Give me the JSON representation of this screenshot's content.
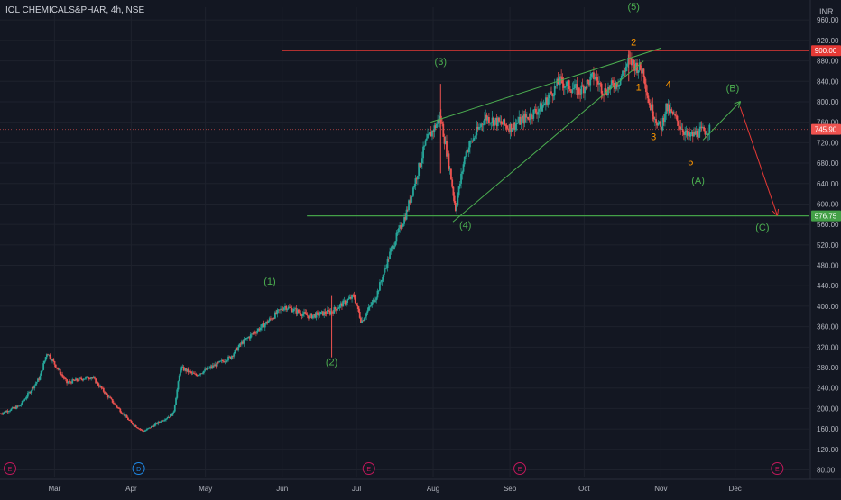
{
  "title": "IOL CHEMICALS&PHAR, 4h, NSE",
  "currency": "INR",
  "chart_data": {
    "type": "candlestick",
    "colors": {
      "background": "#131722",
      "up": "#26a69a",
      "down": "#ef5350",
      "grid": "#1e222d",
      "axis_text": "#b2b5be",
      "wave_green": "#4caf50",
      "wave_orange": "#ff9800",
      "resistance": "#e53935",
      "support": "#43a047"
    },
    "x_ticks": [
      {
        "label": "Mar",
        "date": "2020-03-01"
      },
      {
        "label": "Apr",
        "date": "2020-04-01"
      },
      {
        "label": "May",
        "date": "2020-05-01"
      },
      {
        "label": "Jun",
        "date": "2020-06-01"
      },
      {
        "label": "Jul",
        "date": "2020-07-01"
      },
      {
        "label": "Aug",
        "date": "2020-08-01"
      },
      {
        "label": "Sep",
        "date": "2020-09-01"
      },
      {
        "label": "Oct",
        "date": "2020-10-01"
      },
      {
        "label": "Nov",
        "date": "2020-11-01"
      },
      {
        "label": "Dec",
        "date": "2020-12-01"
      }
    ],
    "y_ticks": [
      80,
      120,
      160,
      200,
      240,
      280,
      320,
      360,
      400,
      440,
      480,
      520,
      560,
      600,
      640,
      680,
      720,
      760,
      800,
      840,
      880,
      920,
      960
    ],
    "ylim": [
      65,
      985
    ],
    "xlim": [
      "2020-02-08",
      "2020-12-31"
    ],
    "last_price": {
      "value": 745.9,
      "label": "745.90"
    },
    "resistance": {
      "value": 900.0,
      "label": "900.00",
      "from": "2020-06-01"
    },
    "support": {
      "value": 576.75,
      "label": "576.75",
      "from": "2020-06-11"
    },
    "price_path": [
      [
        "2020-02-08",
        190
      ],
      [
        "2020-02-16",
        205
      ],
      [
        "2020-02-24",
        260
      ],
      [
        "2020-02-27",
        310
      ],
      [
        "2020-03-06",
        250
      ],
      [
        "2020-03-12",
        258
      ],
      [
        "2020-03-16",
        262
      ],
      [
        "2020-03-25",
        210
      ],
      [
        "2020-04-01",
        172
      ],
      [
        "2020-04-06",
        155
      ],
      [
        "2020-04-18",
        190
      ],
      [
        "2020-04-21",
        280
      ],
      [
        "2020-04-27",
        265
      ],
      [
        "2020-05-11",
        300
      ],
      [
        "2020-05-16",
        330
      ],
      [
        "2020-05-25",
        365
      ],
      [
        "2020-06-02",
        400
      ],
      [
        "2020-06-12",
        380
      ],
      [
        "2020-06-21",
        390
      ],
      [
        "2020-06-30",
        420
      ],
      [
        "2020-07-03",
        370
      ],
      [
        "2020-07-09",
        420
      ],
      [
        "2020-07-15",
        510
      ],
      [
        "2020-07-21",
        580
      ],
      [
        "2020-07-29",
        720
      ],
      [
        "2020-08-04",
        770
      ],
      [
        "2020-08-08",
        660
      ],
      [
        "2020-08-10",
        590
      ],
      [
        "2020-08-14",
        700
      ],
      [
        "2020-08-22",
        770
      ],
      [
        "2020-09-01",
        750
      ],
      [
        "2020-09-08",
        770
      ],
      [
        "2020-09-14",
        790
      ],
      [
        "2020-09-21",
        840
      ],
      [
        "2020-09-25",
        830
      ],
      [
        "2020-09-29",
        820
      ],
      [
        "2020-10-05",
        850
      ],
      [
        "2020-10-09",
        820
      ],
      [
        "2020-10-15",
        840
      ],
      [
        "2020-10-19",
        880
      ],
      [
        "2020-10-22",
        870
      ],
      [
        "2020-10-25",
        860
      ],
      [
        "2020-10-27",
        800
      ],
      [
        "2020-11-01",
        745
      ],
      [
        "2020-11-03",
        790
      ],
      [
        "2020-11-08",
        760
      ],
      [
        "2020-11-12",
        730
      ],
      [
        "2020-11-16",
        740
      ],
      [
        "2020-11-21",
        745.9
      ]
    ],
    "wicks": [
      {
        "date": "2020-06-21",
        "low": 300,
        "high": 420
      },
      {
        "date": "2020-08-04",
        "low": 660,
        "high": 835
      },
      {
        "date": "2020-10-19",
        "low": 840,
        "high": 900
      }
    ],
    "trendlines": [
      {
        "name": "wedge-upper-line",
        "color": "wave_green",
        "from": [
          "2020-07-31",
          760
        ],
        "to": [
          "2020-11-01",
          905
        ]
      },
      {
        "name": "wedge-lower-line",
        "color": "wave_green",
        "from": [
          "2020-08-09",
          565
        ],
        "to": [
          "2020-10-25",
          880
        ]
      },
      {
        "name": "projection-b-arrow",
        "color": "wave_green",
        "from": [
          "2020-11-18",
          725
        ],
        "to": [
          "2020-12-03",
          800
        ],
        "arrow": true
      },
      {
        "name": "projection-c-arrow",
        "color": "resistance",
        "from": [
          "2020-12-03",
          790
        ],
        "to": [
          "2020-12-18",
          578
        ],
        "arrow": true
      }
    ],
    "wave_labels": [
      {
        "text": "(1)",
        "date": "2020-05-27",
        "price": 442,
        "color": "wave_green"
      },
      {
        "text": "(2)",
        "date": "2020-06-21",
        "price": 284,
        "color": "wave_green"
      },
      {
        "text": "(3)",
        "date": "2020-08-04",
        "price": 872,
        "color": "wave_green"
      },
      {
        "text": "(4)",
        "date": "2020-08-14",
        "price": 552,
        "color": "wave_green"
      },
      {
        "text": "(5)",
        "date": "2020-10-21",
        "price": 980,
        "color": "wave_green"
      },
      {
        "text": "2",
        "date": "2020-10-21",
        "price": 910,
        "color": "wave_orange"
      },
      {
        "text": "1",
        "date": "2020-10-23",
        "price": 822,
        "color": "wave_orange"
      },
      {
        "text": "4",
        "date": "2020-11-04",
        "price": 827,
        "color": "wave_orange"
      },
      {
        "text": "3",
        "date": "2020-10-29",
        "price": 725,
        "color": "wave_orange"
      },
      {
        "text": "5",
        "date": "2020-11-13",
        "price": 676,
        "color": "wave_orange"
      },
      {
        "text": "(B)",
        "date": "2020-11-30",
        "price": 820,
        "color": "wave_green"
      },
      {
        "text": "(A)",
        "date": "2020-11-16",
        "price": 640,
        "color": "wave_green"
      },
      {
        "text": "(C)",
        "date": "2020-12-12",
        "price": 548,
        "color": "wave_green"
      }
    ],
    "events": [
      {
        "label": "E",
        "date": "2020-02-12",
        "color": "#c2185b"
      },
      {
        "label": "D",
        "date": "2020-04-04",
        "color": "#1e88e5"
      },
      {
        "label": "E",
        "date": "2020-07-06",
        "color": "#c2185b"
      },
      {
        "label": "E",
        "date": "2020-09-05",
        "color": "#c2185b"
      },
      {
        "label": "E",
        "date": "2020-12-18",
        "color": "#c2185b"
      }
    ]
  }
}
